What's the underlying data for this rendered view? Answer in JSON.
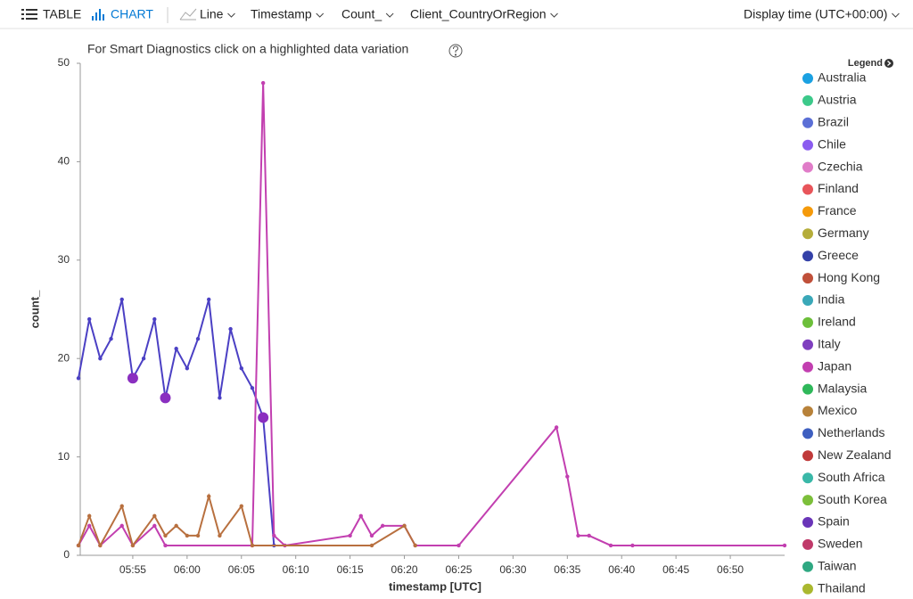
{
  "toolbar": {
    "table": "TABLE",
    "chart": "CHART",
    "chart_style": "Line",
    "x_column": "Timestamp",
    "y_column": "Count_",
    "split_column": "Client_CountryOrRegion",
    "display_time": "Display time (UTC+00:00)"
  },
  "chart_data": {
    "type": "line",
    "subtitle": "For Smart Diagnostics click on a highlighted data variation",
    "x_label": "timestamp [UTC]",
    "y_label": "count_",
    "xlim": [
      "05:50",
      "06:55"
    ],
    "xticks": [
      "05:55",
      "06:00",
      "06:05",
      "06:10",
      "06:15",
      "06:20",
      "06:25",
      "06:30",
      "06:35",
      "06:40",
      "06:45",
      "06:50"
    ],
    "ylim": [
      0,
      50
    ],
    "yticks": [
      0,
      10,
      20,
      30,
      40,
      50
    ],
    "series": [
      {
        "name": "Greece",
        "color": "#4b40c4",
        "x": [
          "05:50",
          "05:51",
          "05:52",
          "05:53",
          "05:54",
          "05:55",
          "05:56",
          "05:57",
          "05:58",
          "05:59",
          "06:00",
          "06:01",
          "06:02",
          "06:03",
          "06:04",
          "06:05",
          "06:06",
          "06:07",
          "06:08"
        ],
        "values": [
          18,
          24,
          20,
          22,
          26,
          18,
          20,
          24,
          16,
          21,
          19,
          22,
          26,
          16,
          23,
          19,
          17,
          14,
          1
        ]
      },
      {
        "name": "Japan",
        "color": "#c23fb0",
        "x": [
          "05:50",
          "05:51",
          "05:52",
          "05:54",
          "05:55",
          "05:57",
          "05:58",
          "06:06",
          "06:07",
          "06:08",
          "06:09",
          "06:15",
          "06:16",
          "06:17",
          "06:18",
          "06:20",
          "06:21",
          "06:25",
          "06:34",
          "06:35",
          "06:36",
          "06:37",
          "06:39",
          "06:41",
          "06:55"
        ],
        "values": [
          1,
          3,
          1,
          3,
          1,
          3,
          1,
          1,
          48,
          2,
          1,
          2,
          4,
          2,
          3,
          3,
          1,
          1,
          13,
          8,
          2,
          2,
          1,
          1,
          1
        ]
      },
      {
        "name": "Mexico",
        "color": "#b8703f",
        "x": [
          "05:50",
          "05:51",
          "05:52",
          "05:54",
          "05:55",
          "05:57",
          "05:58",
          "05:59",
          "06:00",
          "06:01",
          "06:02",
          "06:03",
          "06:05",
          "06:06",
          "06:17",
          "06:20",
          "06:21"
        ],
        "values": [
          1,
          4,
          1,
          5,
          1,
          4,
          2,
          3,
          2,
          2,
          6,
          2,
          5,
          1,
          1,
          3,
          1
        ]
      }
    ],
    "anomalies": {
      "color": "#8a2fc0",
      "x": [
        "05:55",
        "05:58",
        "06:07"
      ],
      "values": [
        18,
        16,
        14
      ]
    }
  },
  "legend": {
    "title": "Legend",
    "items": [
      {
        "name": "Australia",
        "color": "#1ba1e2"
      },
      {
        "name": "Austria",
        "color": "#3cc98a"
      },
      {
        "name": "Brazil",
        "color": "#5b6fd6"
      },
      {
        "name": "Chile",
        "color": "#8b5cf0"
      },
      {
        "name": "Czechia",
        "color": "#e07cc8"
      },
      {
        "name": "Finland",
        "color": "#e8555a"
      },
      {
        "name": "France",
        "color": "#f59a0a"
      },
      {
        "name": "Germany",
        "color": "#b5ad3a"
      },
      {
        "name": "Greece",
        "color": "#3441a8"
      },
      {
        "name": "Hong Kong",
        "color": "#c0503a"
      },
      {
        "name": "India",
        "color": "#3aa8b8"
      },
      {
        "name": "Ireland",
        "color": "#6cbf3a"
      },
      {
        "name": "Italy",
        "color": "#7f3fbf"
      },
      {
        "name": "Japan",
        "color": "#c23fb0"
      },
      {
        "name": "Malaysia",
        "color": "#2fb85a"
      },
      {
        "name": "Mexico",
        "color": "#b8823a"
      },
      {
        "name": "Netherlands",
        "color": "#3e5fc0"
      },
      {
        "name": "New Zealand",
        "color": "#c03a3a"
      },
      {
        "name": "South Africa",
        "color": "#3ab8a8"
      },
      {
        "name": "South Korea",
        "color": "#7cbf3a"
      },
      {
        "name": "Spain",
        "color": "#6a35b8"
      },
      {
        "name": "Sweden",
        "color": "#c03a6a"
      },
      {
        "name": "Taiwan",
        "color": "#2fa882"
      },
      {
        "name": "Thailand",
        "color": "#aab82f"
      }
    ]
  }
}
